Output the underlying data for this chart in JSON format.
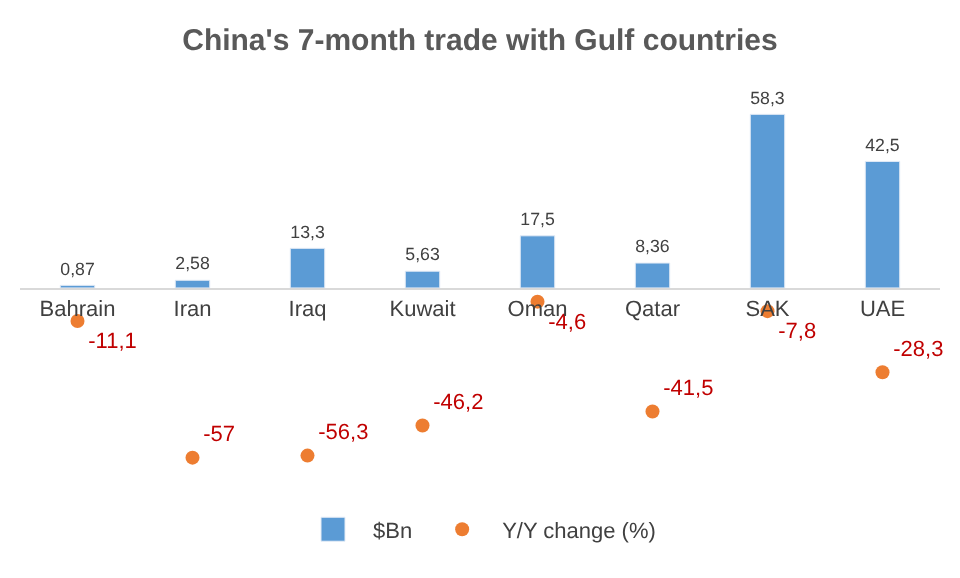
{
  "chart_data": {
    "type": "bar",
    "title": "China's 7-month trade with Gulf countries",
    "categories": [
      "Bahrain",
      "Iran",
      "Iraq",
      "Kuwait",
      "Oman",
      "Qatar",
      "SAK",
      "UAE"
    ],
    "series": [
      {
        "name": "$Bn",
        "color": "#5b9bd5",
        "values": [
          0.87,
          2.58,
          13.3,
          5.63,
          17.5,
          8.36,
          58.3,
          42.5
        ],
        "value_labels": [
          "0,87",
          "2,58",
          "13,3",
          "5,63",
          "17,5",
          "8,36",
          "58,3",
          "42,5"
        ]
      },
      {
        "name": "Y/Y change (%)",
        "type": "scatter",
        "color": "#ed7d31",
        "marker": "circle",
        "values": [
          -11.1,
          -57,
          -56.3,
          -46.2,
          -4.6,
          -41.5,
          -7.8,
          -28.3
        ],
        "value_labels": [
          "-11,1",
          "-57",
          "-56,3",
          "-46,2",
          "-4,6",
          "-41,5",
          "-7,8",
          "-28,3"
        ]
      }
    ],
    "tick_labels": "x",
    "legend": "bottom"
  }
}
